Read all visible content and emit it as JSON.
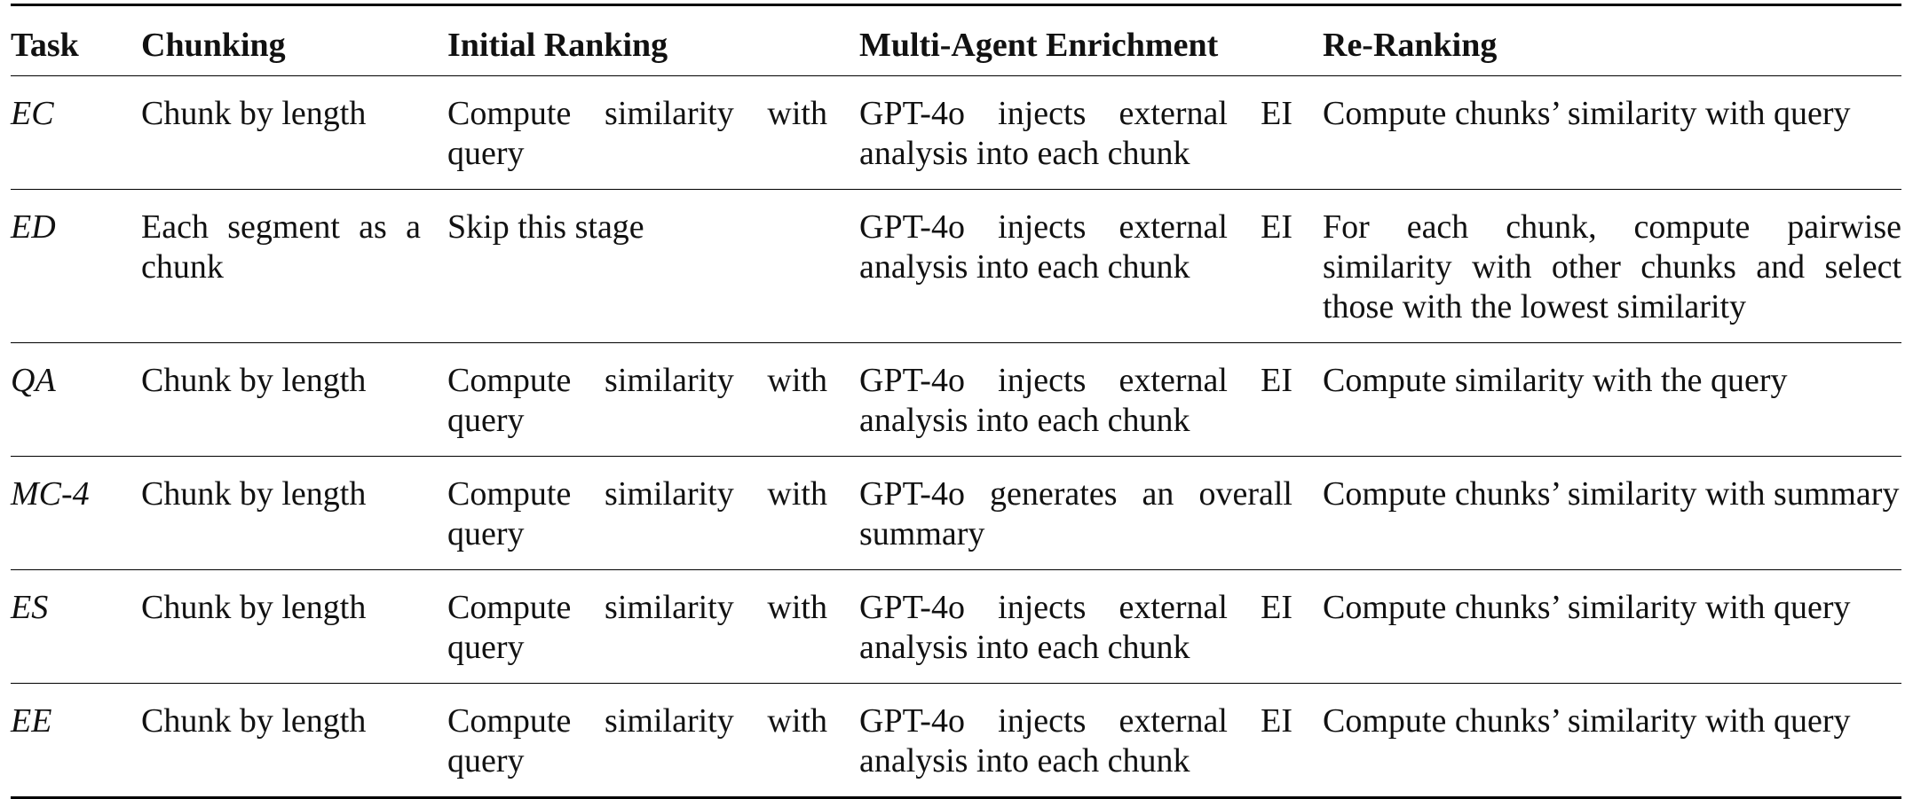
{
  "table": {
    "headers": [
      "Task",
      "Chunking",
      "Initial Ranking",
      "Multi-Agent Enrichment",
      "Re-Ranking"
    ],
    "rows": [
      {
        "task": "EC",
        "chunking": "Chunk by length",
        "initial_ranking": "Compute similarity with query",
        "enrichment": "GPT-4o injects external EI analysis into each chunk",
        "reranking": "Compute chunks’ similarity with query"
      },
      {
        "task": "ED",
        "chunking": "Each segment as a chunk",
        "initial_ranking": "Skip this stage",
        "enrichment": "GPT-4o injects external EI analysis into each chunk",
        "reranking": "For each chunk, compute pairwise similarity with other chunks and select those with the lowest similarity"
      },
      {
        "task": "QA",
        "chunking": "Chunk by length",
        "initial_ranking": "Compute similarity with query",
        "enrichment": "GPT-4o injects external EI analysis into each chunk",
        "reranking": "Compute similarity with the query"
      },
      {
        "task": "MC-4",
        "chunking": "Chunk by length",
        "initial_ranking": "Compute similarity with query",
        "enrichment": "GPT-4o generates an overall summary",
        "reranking": "Compute chunks’ similarity with summary"
      },
      {
        "task": "ES",
        "chunking": "Chunk by length",
        "initial_ranking": "Compute similarity with query",
        "enrichment": "GPT-4o injects external EI analysis into each chunk",
        "reranking": "Compute chunks’ similarity with query"
      },
      {
        "task": "EE",
        "chunking": "Chunk by length",
        "initial_ranking": "Compute similarity with query",
        "enrichment": "GPT-4o injects external EI analysis into each chunk",
        "reranking": "Compute chunks’ similarity with query"
      }
    ]
  }
}
